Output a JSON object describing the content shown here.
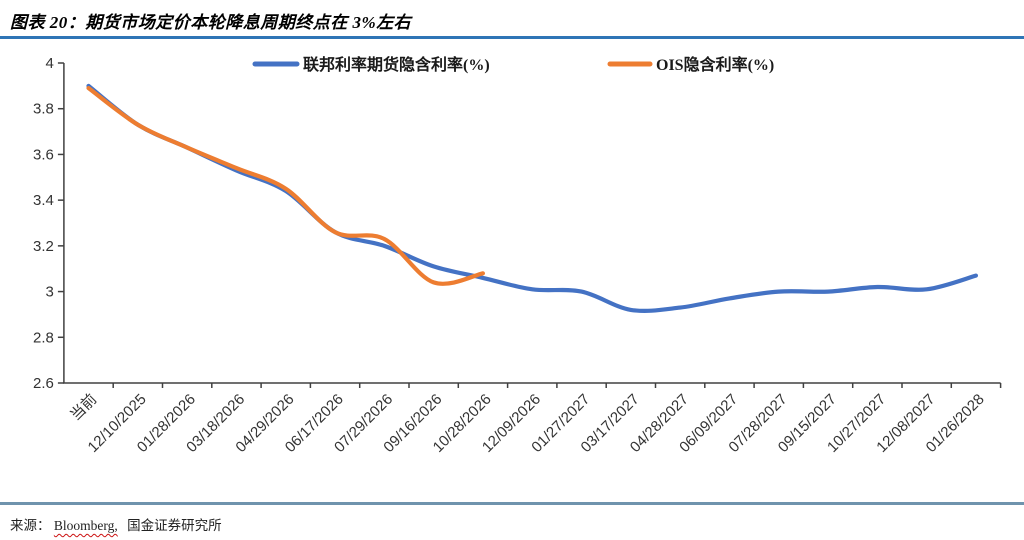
{
  "header": {
    "title": "图表 20：期货市场定价本轮降息周期终点在 3%左右"
  },
  "footer": {
    "source_prefix": "来源：",
    "source_item_1": "Bloomberg,",
    "source_item_2": "国金证券研究所"
  },
  "colors": {
    "series_blue": "#4472C4",
    "series_orange": "#ED7D31",
    "axis": "#404040",
    "tick_label": "#333333",
    "title_rule": "#2e75b6",
    "footer_rule": "#6f93ad"
  },
  "chart_data": {
    "type": "line",
    "title": "图表 20：期货市场定价本轮降息周期终点在 3%左右",
    "grid": false,
    "legend_position": "top",
    "smoothed": true,
    "ylim": [
      2.6,
      4.0
    ],
    "y_tick_step": 0.2,
    "y_tick_labels": [
      "2.6",
      "2.8",
      "3",
      "3.2",
      "3.4",
      "3.6",
      "3.8",
      "4"
    ],
    "categories": [
      "当前",
      "12/10/2025",
      "01/28/2026",
      "03/18/2026",
      "04/29/2026",
      "06/17/2026",
      "07/29/2026",
      "09/16/2026",
      "10/28/2026",
      "12/09/2026",
      "01/27/2027",
      "03/17/2027",
      "04/28/2027",
      "06/09/2027",
      "07/28/2027",
      "09/15/2027",
      "10/27/2027",
      "12/08/2027",
      "01/26/2028"
    ],
    "series": [
      {
        "name": "联邦利率期货隐含利率(%)",
        "color": "#4472C4",
        "values": [
          3.9,
          3.73,
          3.63,
          3.53,
          3.44,
          3.26,
          3.2,
          3.11,
          3.06,
          3.01,
          3.0,
          2.92,
          2.93,
          2.97,
          3.0,
          3.0,
          3.02,
          3.01,
          3.07
        ]
      },
      {
        "name": "OIS隐含利率(%)",
        "color": "#ED7D31",
        "values": [
          3.89,
          3.73,
          3.63,
          3.54,
          3.45,
          3.26,
          3.23,
          3.04,
          3.08
        ]
      }
    ]
  }
}
